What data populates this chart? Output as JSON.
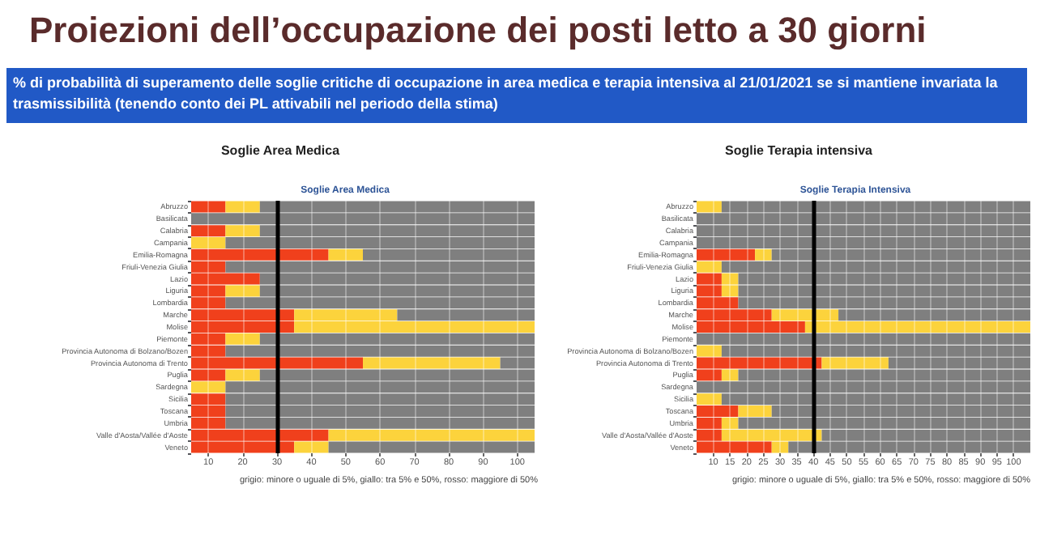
{
  "chart_data": [
    {
      "type": "bar",
      "orientation": "horizontal",
      "stacked": true,
      "title": "Soglie Area Medica",
      "subtitle": "Soglie Area Medica",
      "annotations": [
        "Proiezioni dell’occupazione dei posti letto a 30 giorni",
        "% di probabilità di superamento delle soglie critiche di occupazione in area medica e terapia intensiva al 21/01/2021  se si mantiene invariata la trasmissibilità (tenendo conto dei PL attivabili nel periodo della stima)",
        "grigio: minore o uguale di 5%, giallo: tra 5% e 50%, rosso: maggiore di 50%"
      ],
      "categories": [
        "Abruzzo",
        "Basilicata",
        "Calabria",
        "Campania",
        "Emilia-Romagna",
        "Friuli-Venezia Giulia",
        "Lazio",
        "Liguria",
        "Lombardia",
        "Marche",
        "Molise",
        "Piemonte",
        "Provincia Autonoma di Bolzano/Bozen",
        "Provincia Autonoma di Trento",
        "Puglia",
        "Sardegna",
        "Sicilia",
        "Toscana",
        "Umbria",
        "Valle d'Aosta/Vallée d'Aoste",
        "Veneto"
      ],
      "series": [
        {
          "color": "#f0401c",
          "values": [
            15,
            null,
            15,
            null,
            45,
            15,
            25,
            15,
            15,
            35,
            35,
            15,
            15,
            55,
            15,
            null,
            15,
            15,
            15,
            45,
            35
          ]
        },
        {
          "color": "#fcd33c",
          "values": [
            10,
            null,
            10,
            15,
            10,
            null,
            null,
            10,
            null,
            30,
            70,
            10,
            null,
            40,
            10,
            15,
            null,
            null,
            null,
            60,
            10
          ]
        },
        {
          "color": "#7f7f7f",
          "values": [
            80,
            105,
            80,
            90,
            50,
            90,
            80,
            80,
            90,
            40,
            null,
            80,
            90,
            10,
            80,
            90,
            90,
            90,
            90,
            null,
            60
          ]
        }
      ],
      "xlim": [
        5,
        105
      ],
      "xticks": [
        10,
        20,
        30,
        40,
        50,
        60,
        70,
        80,
        90,
        100
      ],
      "grid": "x",
      "ref_lines": [
        {
          "axis": "x",
          "value": 30,
          "color": "#000000"
        }
      ]
    },
    {
      "type": "bar",
      "orientation": "horizontal",
      "stacked": true,
      "title": "Soglie Terapia intensiva",
      "subtitle": "Soglie Terapia Intensiva",
      "annotations": [
        "grigio: minore o uguale di 5%, giallo: tra 5% e 50%, rosso: maggiore di 50%"
      ],
      "categories": [
        "Abruzzo",
        "Basilicata",
        "Calabria",
        "Campania",
        "Emilia-Romagna",
        "Friuli-Venezia Giulia",
        "Lazio",
        "Liguria",
        "Lombardia",
        "Marche",
        "Molise",
        "Piemonte",
        "Provincia Autonoma di Bolzano/Bozen",
        "Provincia Autonoma di Trento",
        "Puglia",
        "Sardegna",
        "Sicilia",
        "Toscana",
        "Umbria",
        "Valle d'Aosta/Vallée d'Aoste",
        "Veneto"
      ],
      "series": [
        {
          "color": "#f0401c",
          "values": [
            null,
            null,
            null,
            null,
            22.5,
            null,
            12.5,
            12.5,
            17.5,
            27.5,
            37.5,
            null,
            null,
            42.5,
            12.5,
            null,
            null,
            17.5,
            12.5,
            12.5,
            27.5
          ]
        },
        {
          "color": "#fcd33c",
          "values": [
            12.5,
            null,
            null,
            null,
            5,
            12.5,
            5,
            5,
            null,
            20,
            67.5,
            null,
            12.5,
            20,
            5,
            null,
            12.5,
            10,
            5,
            30,
            5
          ]
        },
        {
          "color": "#7f7f7f",
          "values": [
            92.5,
            105,
            105,
            105,
            77.5,
            92.5,
            87.5,
            87.5,
            87.5,
            57.5,
            null,
            105,
            92.5,
            42.5,
            87.5,
            105,
            92.5,
            77.5,
            87.5,
            62.5,
            72.5
          ]
        }
      ],
      "xlim": [
        5,
        105
      ],
      "xticks": [
        10,
        15,
        20,
        25,
        30,
        35,
        40,
        45,
        50,
        55,
        60,
        65,
        70,
        75,
        80,
        85,
        90,
        95,
        100
      ],
      "grid": "x",
      "ref_lines": [
        {
          "axis": "x",
          "value": 40,
          "color": "#000000"
        }
      ]
    }
  ]
}
